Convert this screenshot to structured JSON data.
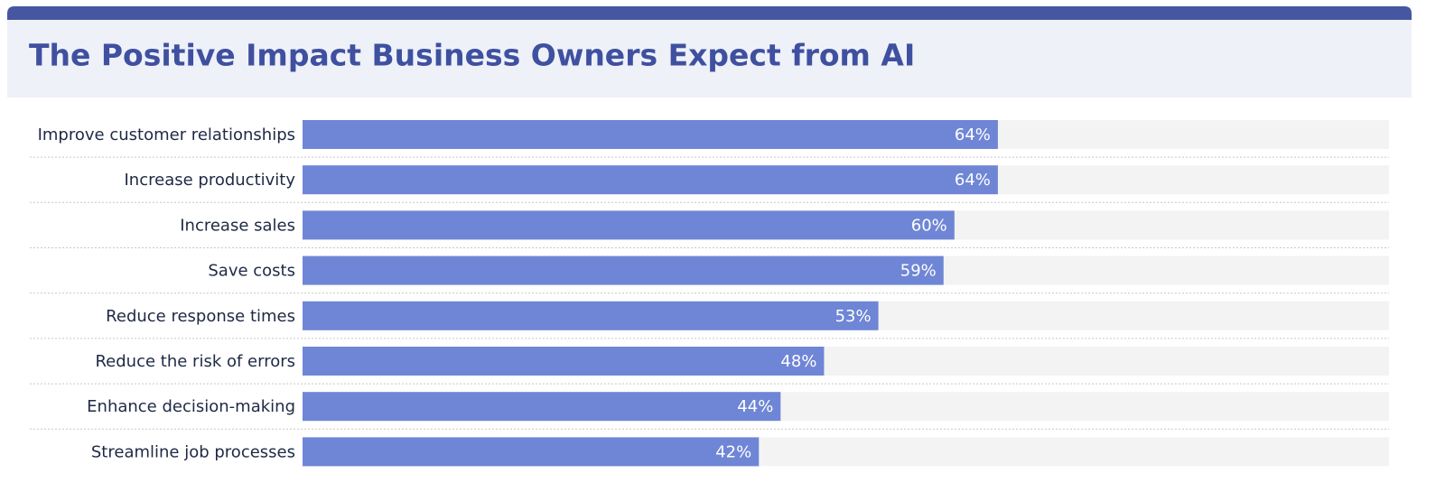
{
  "chart_data": {
    "type": "bar",
    "orientation": "horizontal",
    "title": "The Positive Impact Business Owners Expect from AI",
    "categories": [
      "Improve customer relationships",
      "Increase productivity",
      "Increase sales",
      "Save costs",
      "Reduce response times",
      "Reduce the risk of errors",
      "Enhance decision-making",
      "Streamline job processes"
    ],
    "values": [
      64,
      64,
      60,
      59,
      53,
      48,
      44,
      42
    ],
    "value_labels": [
      "64%",
      "64%",
      "60%",
      "59%",
      "53%",
      "48%",
      "44%",
      "42%"
    ],
    "color": "#6f86d6",
    "xlim": [
      0,
      100
    ]
  }
}
